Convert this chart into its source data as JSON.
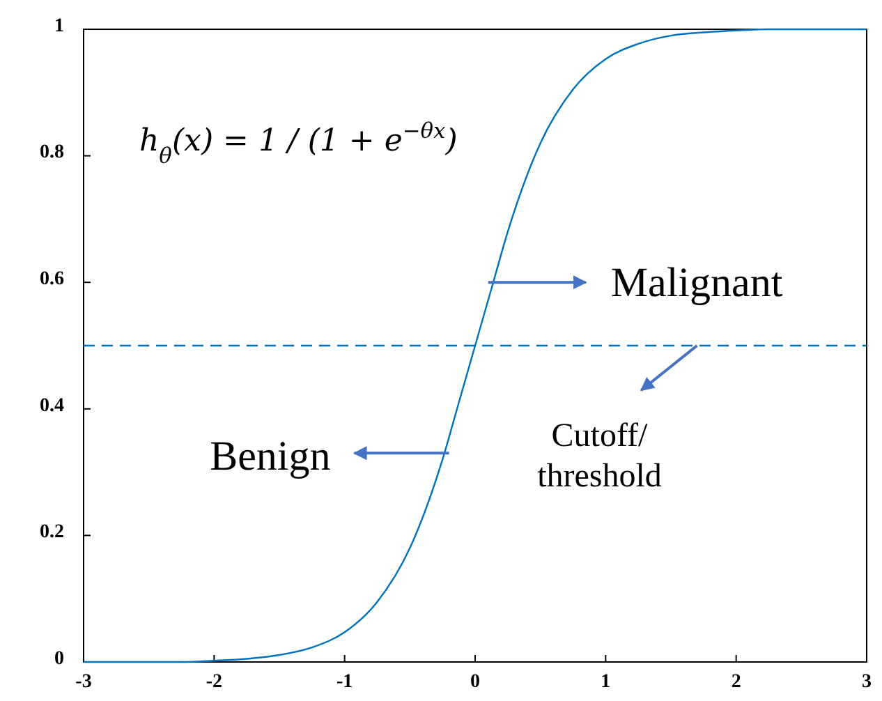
{
  "chart_data": {
    "type": "line",
    "x": [
      -3,
      -2.75,
      -2.5,
      -2.25,
      -2,
      -1.75,
      -1.5,
      -1.25,
      -1,
      -0.75,
      -0.5,
      -0.25,
      -0.125,
      0,
      0.125,
      0.25,
      0.5,
      0.75,
      1,
      1.25,
      1.5,
      1.75,
      2,
      2.25,
      2.5,
      2.75,
      3
    ],
    "series": [
      {
        "color": "#0072bd",
        "values": [
          0,
          0,
          0,
          0,
          0.002,
          0.005,
          0.011,
          0.023,
          0.047,
          0.095,
          0.18,
          0.32,
          0.41,
          0.5,
          0.59,
          0.68,
          0.82,
          0.905,
          0.953,
          0.977,
          0.99,
          0.995,
          0.998,
          1,
          1,
          1,
          1
        ]
      }
    ],
    "xlim": [
      -3,
      3
    ],
    "xticks": [
      -3,
      -2,
      -1,
      0,
      1,
      2,
      3
    ],
    "ylim": [
      0,
      1
    ],
    "yticks": [
      0,
      0.2,
      0.4,
      0.6,
      0.8,
      1
    ],
    "line_style": "solid",
    "marker": "none",
    "grid": false,
    "ref_lines": [
      {
        "axis": "y",
        "value": 0.5,
        "color": "#0072bd",
        "line_style": "dashed"
      }
    ],
    "annotations": [
      "h$_{θ}$(x) = 1 / (1 + e$^{−θx}$)",
      {
        "text": "Malignant",
        "x": 0.1,
        "y": 0.6
      },
      {
        "text": "Benign",
        "x": -0.2,
        "y": 0.33
      },
      {
        "text": "Cutoff/\nthreshold",
        "x": 1.7,
        "y": 0.5
      }
    ]
  }
}
